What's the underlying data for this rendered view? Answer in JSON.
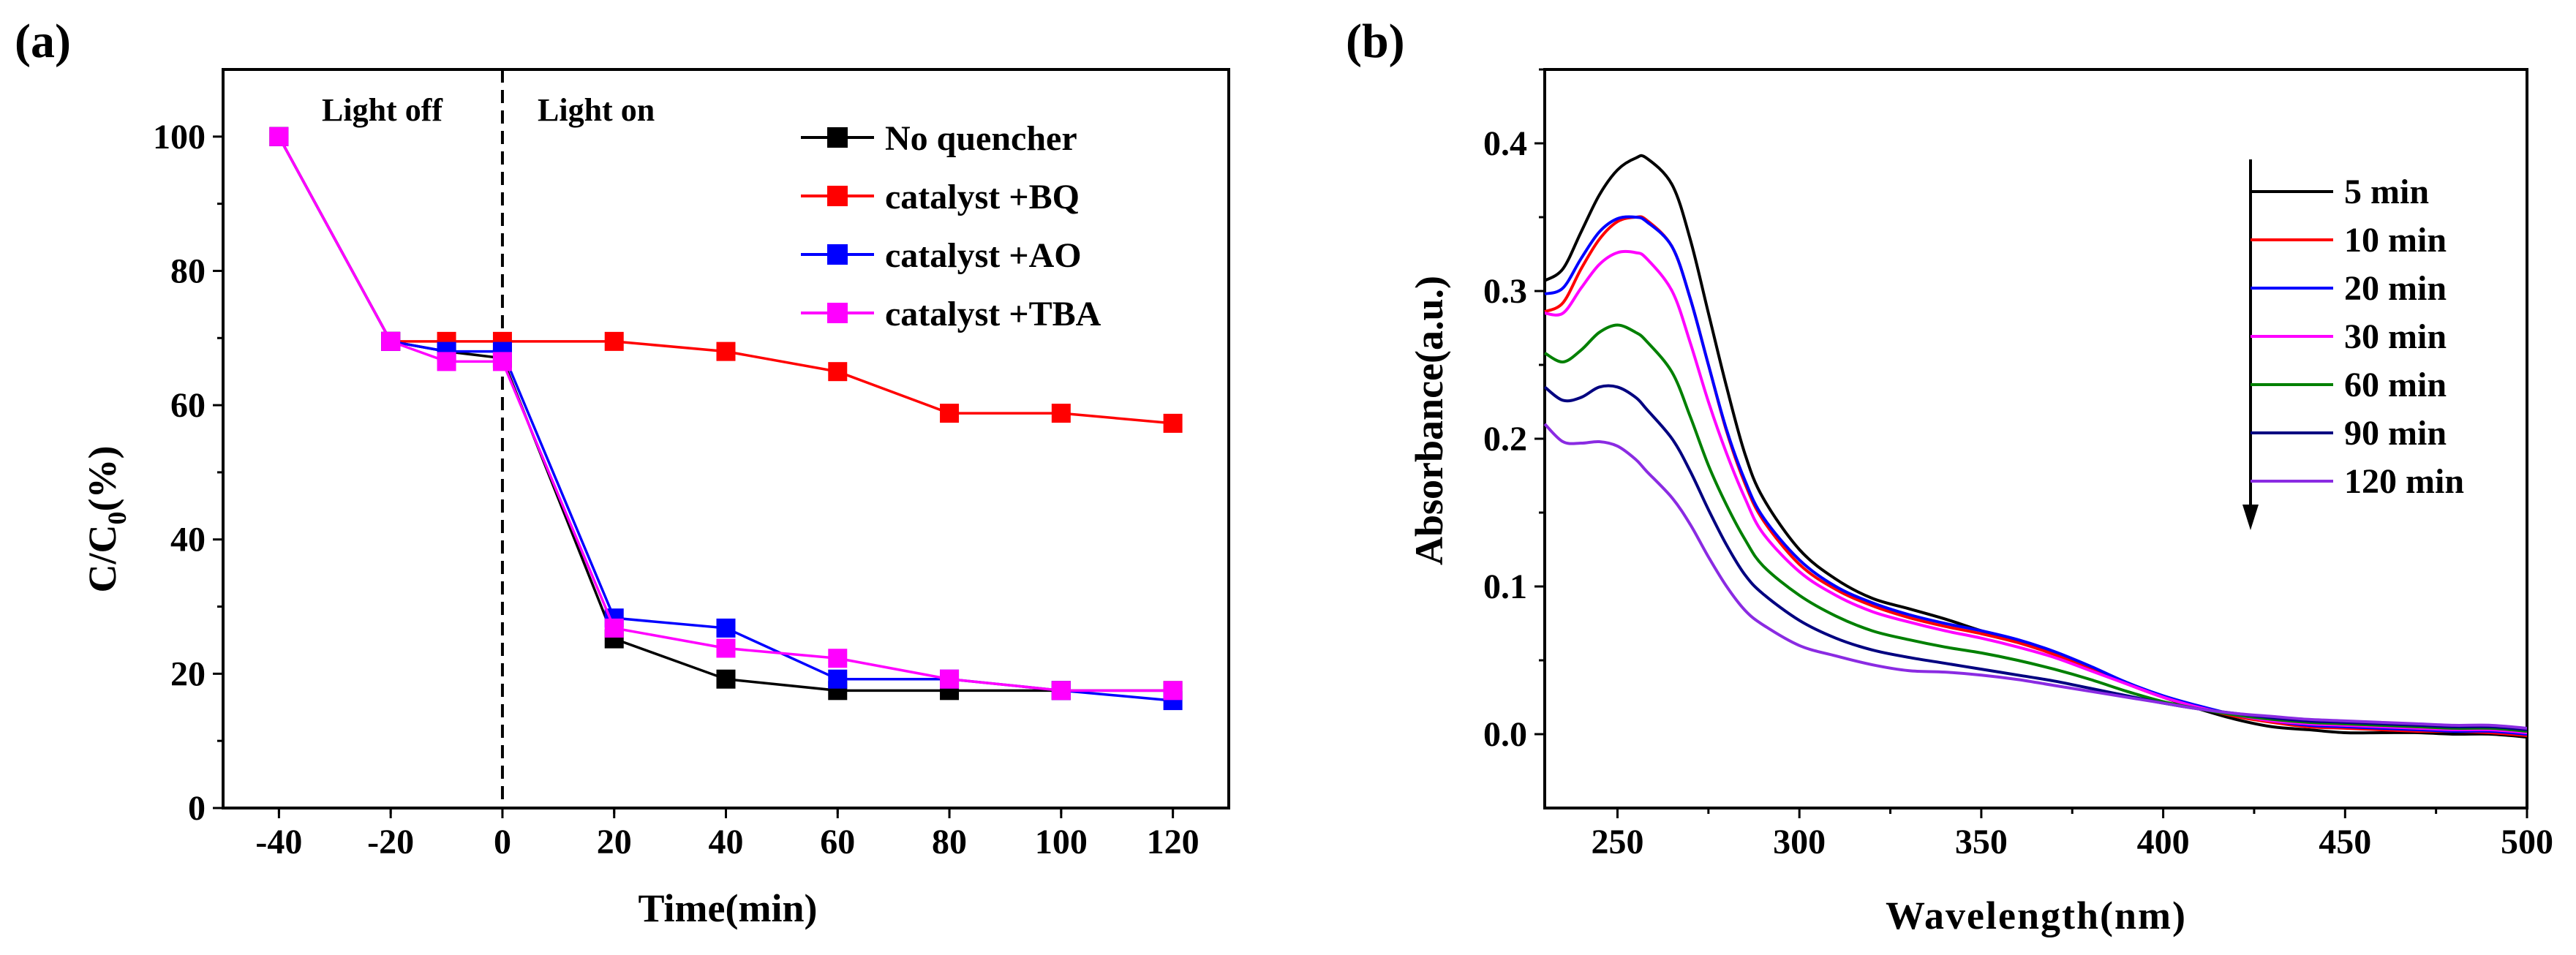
{
  "chart_data": [
    {
      "panel_label": "(a)",
      "type": "line",
      "xlabel": "Time(min)",
      "ylabel_main": "C/C",
      "ylabel_sub": "0",
      "ylabel_unit": "(%)",
      "xlim": [
        -50,
        130
      ],
      "ylim": [
        0,
        110
      ],
      "xticks": [
        -40,
        -20,
        0,
        20,
        40,
        60,
        80,
        100,
        120
      ],
      "yticks": [
        0,
        20,
        40,
        60,
        80,
        100
      ],
      "vline_x": 0,
      "annotations": {
        "light_off": "Light off",
        "light_on": "Light on"
      },
      "legend_position": "top-right",
      "series": [
        {
          "name": "No quencher",
          "color": "#000000",
          "x": [
            -40,
            -20,
            -10,
            0,
            20,
            40,
            60,
            80,
            100,
            120
          ],
          "y": [
            100,
            69.5,
            68,
            67,
            25.2,
            19.2,
            17.5,
            17.5,
            17.5,
            17.5
          ]
        },
        {
          "name": "catalyst +BQ",
          "color": "#ff0000",
          "x": [
            -40,
            -20,
            -10,
            0,
            20,
            40,
            60,
            80,
            100,
            120
          ],
          "y": [
            100,
            69.5,
            69.5,
            69.5,
            69.5,
            68,
            65,
            58.8,
            58.8,
            57.3
          ]
        },
        {
          "name": "catalyst +AO",
          "color": "#0000ff",
          "x": [
            -40,
            -20,
            -10,
            0,
            20,
            40,
            60,
            80,
            100,
            120
          ],
          "y": [
            100,
            69.5,
            68,
            68,
            28.3,
            26.8,
            19.2,
            19.2,
            17.5,
            16
          ]
        },
        {
          "name": "catalyst +TBA",
          "color": "#ff00ff",
          "x": [
            -40,
            -20,
            -10,
            0,
            20,
            40,
            60,
            80,
            100,
            120
          ],
          "y": [
            100,
            69.5,
            66.5,
            66.5,
            26.8,
            23.8,
            22.3,
            19.2,
            17.5,
            17.5
          ]
        }
      ]
    },
    {
      "panel_label": "(b)",
      "type": "line",
      "xlabel": "Wavelength(nm)",
      "ylabel": "Absorbance(a.u.)",
      "xlim": [
        230,
        500
      ],
      "ylim": [
        -0.05,
        0.45
      ],
      "xticks": [
        250,
        300,
        350,
        400,
        450,
        500
      ],
      "yticks": [
        0.0,
        0.1,
        0.2,
        0.3,
        0.4
      ],
      "ytick_labels": [
        "0.0",
        "0.1",
        "0.2",
        "0.3",
        "0.4"
      ],
      "legend_position": "top-right",
      "legend_arrow": "down",
      "x": [
        230,
        235,
        240,
        245,
        250,
        255,
        258,
        265,
        270,
        275,
        280,
        285,
        290,
        300,
        310,
        320,
        330,
        340,
        350,
        360,
        370,
        380,
        390,
        400,
        410,
        420,
        430,
        440,
        450,
        460,
        470,
        480,
        490,
        500
      ],
      "series": [
        {
          "name": "5 min",
          "color": "#000000",
          "y": [
            0.307,
            0.315,
            0.34,
            0.365,
            0.382,
            0.39,
            0.39,
            0.372,
            0.335,
            0.285,
            0.235,
            0.19,
            0.16,
            0.125,
            0.105,
            0.092,
            0.085,
            0.078,
            0.07,
            0.063,
            0.055,
            0.045,
            0.035,
            0.025,
            0.017,
            0.01,
            0.005,
            0.003,
            0.001,
            0.001,
            0.001,
            0.0,
            0.0,
            -0.002
          ]
        },
        {
          "name": "10 min",
          "color": "#ff0000",
          "y": [
            0.286,
            0.292,
            0.315,
            0.335,
            0.347,
            0.35,
            0.348,
            0.33,
            0.295,
            0.25,
            0.205,
            0.17,
            0.145,
            0.115,
            0.098,
            0.087,
            0.079,
            0.073,
            0.068,
            0.062,
            0.054,
            0.044,
            0.034,
            0.025,
            0.018,
            0.012,
            0.008,
            0.005,
            0.004,
            0.003,
            0.002,
            0.002,
            0.001,
            -0.001
          ]
        },
        {
          "name": "20 min",
          "color": "#0000ff",
          "y": [
            0.298,
            0.302,
            0.322,
            0.34,
            0.349,
            0.35,
            0.347,
            0.33,
            0.295,
            0.25,
            0.206,
            0.172,
            0.147,
            0.118,
            0.1,
            0.089,
            0.081,
            0.075,
            0.07,
            0.064,
            0.056,
            0.046,
            0.035,
            0.026,
            0.019,
            0.013,
            0.009,
            0.006,
            0.005,
            0.004,
            0.003,
            0.002,
            0.002,
            0.0
          ]
        },
        {
          "name": "30 min",
          "color": "#ff00ff",
          "y": [
            0.285,
            0.285,
            0.302,
            0.318,
            0.326,
            0.326,
            0.322,
            0.3,
            0.265,
            0.225,
            0.19,
            0.16,
            0.136,
            0.11,
            0.094,
            0.083,
            0.076,
            0.07,
            0.065,
            0.059,
            0.052,
            0.043,
            0.034,
            0.025,
            0.018,
            0.013,
            0.009,
            0.007,
            0.006,
            0.005,
            0.004,
            0.003,
            0.003,
            0.001
          ]
        },
        {
          "name": "60 min",
          "color": "#008000",
          "y": [
            0.258,
            0.252,
            0.26,
            0.272,
            0.277,
            0.272,
            0.266,
            0.245,
            0.215,
            0.182,
            0.155,
            0.132,
            0.114,
            0.094,
            0.08,
            0.07,
            0.064,
            0.059,
            0.055,
            0.05,
            0.044,
            0.037,
            0.029,
            0.022,
            0.017,
            0.013,
            0.01,
            0.008,
            0.007,
            0.006,
            0.005,
            0.004,
            0.004,
            0.002
          ]
        },
        {
          "name": "90 min",
          "color": "#000080",
          "y": [
            0.235,
            0.226,
            0.228,
            0.235,
            0.235,
            0.228,
            0.22,
            0.2,
            0.178,
            0.152,
            0.128,
            0.108,
            0.095,
            0.077,
            0.065,
            0.057,
            0.052,
            0.048,
            0.044,
            0.04,
            0.036,
            0.031,
            0.026,
            0.021,
            0.017,
            0.014,
            0.011,
            0.009,
            0.008,
            0.007,
            0.006,
            0.005,
            0.005,
            0.003
          ]
        },
        {
          "name": "120 min",
          "color": "#8a2be2",
          "y": [
            0.21,
            0.198,
            0.197,
            0.198,
            0.195,
            0.186,
            0.178,
            0.16,
            0.142,
            0.12,
            0.1,
            0.084,
            0.074,
            0.06,
            0.053,
            0.047,
            0.043,
            0.042,
            0.04,
            0.037,
            0.033,
            0.029,
            0.025,
            0.021,
            0.017,
            0.014,
            0.012,
            0.01,
            0.009,
            0.008,
            0.007,
            0.006,
            0.006,
            0.004
          ]
        }
      ]
    }
  ]
}
